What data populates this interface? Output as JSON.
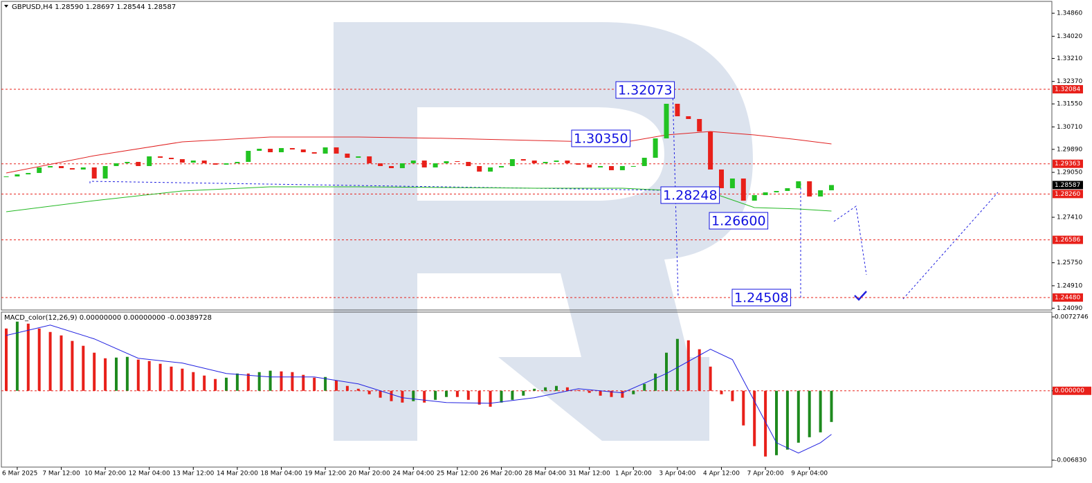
{
  "chart_data": [
    {
      "type": "candlestick",
      "title": "GBPUSD,H4  1.28590 1.28697 1.28544 1.28587",
      "categories": [
        "6 Mar 2025",
        "7 Mar 12:00",
        "10 Mar 20:00",
        "12 Mar 04:00",
        "13 Mar 12:00",
        "14 Mar 20:00",
        "18 Mar 04:00",
        "19 Mar 12:00",
        "20 Mar 20:00",
        "24 Mar 04:00",
        "25 Mar 12:00",
        "26 Mar 20:00",
        "28 Mar 04:00",
        "31 Mar 12:00",
        "1 Apr 20:00",
        "3 Apr 04:00",
        "4 Apr 12:00",
        "7 Apr 20:00",
        "9 Apr 04:00"
      ],
      "close": [
        1.28901,
        1.28977,
        1.29028,
        1.2923,
        1.2928,
        1.29204,
        1.29154,
        1.2923,
        1.28825,
        1.2928,
        1.29381,
        1.29432,
        1.2928,
        1.29634,
        1.29583,
        1.29533,
        1.29406,
        1.29482,
        1.29381,
        1.29331,
        1.29381,
        1.29432,
        1.29836,
        1.29912,
        1.29785,
        1.29937,
        1.29886,
        1.29785,
        1.29735,
        1.29962,
        1.29735,
        1.29583,
        1.29634,
        1.29381,
        1.2928,
        1.29204,
        1.29381,
        1.29482,
        1.2923,
        1.29381,
        1.29457,
        1.29432,
        1.2928,
        1.29078,
        1.2923,
        1.2928,
        1.29533,
        1.29482,
        1.29381,
        1.29432,
        1.29482,
        1.29381,
        1.29331,
        1.2923,
        1.2928,
        1.29129,
        1.2928,
        1.2928,
        1.29583,
        1.30291,
        1.31554,
        1.31099,
        1.30998,
        1.30543,
        1.29154,
        1.28472,
        1.28825,
        1.28017,
        1.28219,
        1.2832,
        1.28371,
        1.28472,
        1.28724,
        1.28169,
        1.28396,
        1.28587
      ],
      "up_color": "#22c322",
      "down_color": "#e8201a",
      "lines": [
        {
          "color": "#e02020",
          "x": [
            0,
            8,
            16,
            24,
            32,
            40,
            48,
            56,
            60,
            64,
            68,
            72,
            75
          ],
          "values": [
            1.29028,
            1.29659,
            1.30164,
            1.30341,
            1.30341,
            1.30291,
            1.30215,
            1.30139,
            1.30417,
            1.30543,
            1.30417,
            1.3024,
            1.30088
          ]
        },
        {
          "color": "#22b822",
          "x": [
            0,
            8,
            16,
            24,
            32,
            40,
            48,
            56,
            64,
            68,
            72,
            75
          ],
          "values": [
            1.27613,
            1.28017,
            1.28371,
            1.28522,
            1.28522,
            1.28497,
            1.28472,
            1.28472,
            1.2832,
            1.27765,
            1.27714,
            1.27638
          ]
        }
      ],
      "ylim": [
        1.24024,
        1.35293
      ],
      "yticks": [
        {
          "value": 1.3486,
          "label": "1.34860"
        },
        {
          "value": 1.3402,
          "label": "1.34020"
        },
        {
          "value": 1.3321,
          "label": "1.33210"
        },
        {
          "value": 1.3237,
          "label": "1.32370"
        },
        {
          "value": 1.3155,
          "label": "1.31550"
        },
        {
          "value": 1.3071,
          "label": "1.30710"
        },
        {
          "value": 1.2989,
          "label": "1.29890"
        },
        {
          "value": 1.2905,
          "label": "1.29050"
        },
        {
          "value": 1.2741,
          "label": "1.27410"
        },
        {
          "value": 1.2575,
          "label": "1.25750"
        },
        {
          "value": 1.2491,
          "label": "1.24910"
        },
        {
          "value": 1.2409,
          "label": "1.24090"
        }
      ],
      "levels": [
        1.32084,
        1.29363,
        {
          "value": 1.2826,
          "label": "1.28260"
        },
        1.26586,
        {
          "value": 1.2448,
          "label": "1.24480"
        }
      ],
      "level_color": "#e8201a",
      "last_price": 1.28587,
      "annotations": [
        "1.32073",
        "1.30350",
        "1.28248",
        "1.26600",
        "1.24508"
      ],
      "annotation_color": "#1010e0"
    },
    {
      "type": "bar",
      "title": "MACD_color(12,26,9) 0.00000000 0.00000000 -0.00389728",
      "values": [
        0.00613,
        0.00681,
        0.00661,
        0.00613,
        0.00579,
        0.00545,
        0.00491,
        0.00443,
        0.00375,
        0.0032,
        0.00327,
        0.00334,
        0.00307,
        0.00293,
        0.00266,
        0.00238,
        0.00218,
        0.00184,
        0.0015,
        0.00116,
        0.00129,
        0.0017,
        0.0017,
        0.00184,
        0.00198,
        0.00191,
        0.00184,
        0.00157,
        0.00129,
        0.00136,
        0.00102,
        0.00048,
        0.0002,
        -0.00034,
        -0.00068,
        -0.00102,
        -0.00116,
        -0.00102,
        -0.00116,
        -0.00089,
        -0.00061,
        -0.00061,
        -0.00089,
        -0.00136,
        -0.00157,
        -0.00116,
        -0.00089,
        -0.00048,
        0.0002,
        0.00034,
        0.00048,
        0.00034,
        7e-05,
        -0.0002,
        -0.00048,
        -0.00061,
        -0.00068,
        -0.00034,
        0.00068,
        0.0017,
        0.00375,
        0.00511,
        0.00497,
        0.00409,
        0.00238,
        -0.00034,
        -0.00102,
        -0.00341,
        -0.00545,
        -0.00647,
        -0.00634,
        -0.00579,
        -0.00511,
        -0.00457,
        -0.00409,
        -0.00307
      ],
      "up_color": "#1e8a1e",
      "down_color": "#e8201a",
      "signal": {
        "color": "#2020e0",
        "x": [
          0,
          4,
          8,
          12,
          16,
          20,
          24,
          28,
          32,
          36,
          40,
          44,
          48,
          52,
          56,
          60,
          64,
          66,
          68,
          70,
          72,
          74,
          75
        ],
        "values": [
          0.00545,
          0.00647,
          0.00511,
          0.0032,
          0.00273,
          0.0017,
          0.00136,
          0.00136,
          0.00068,
          -0.00068,
          -0.00116,
          -0.00123,
          -0.00068,
          0.0002,
          -0.0002,
          0.0017,
          0.00409,
          0.00307,
          -0.00102,
          -0.00511,
          -0.00613,
          -0.00511,
          -0.00429
        ]
      },
      "ylim": [
        -0.00751,
        0.00768
      ],
      "yticks": [
        0.0072746,
        {
          "value": 0,
          "label": "0.000000"
        },
        {
          "value": -0.00683,
          "label": "-0.006830"
        }
      ]
    }
  ]
}
